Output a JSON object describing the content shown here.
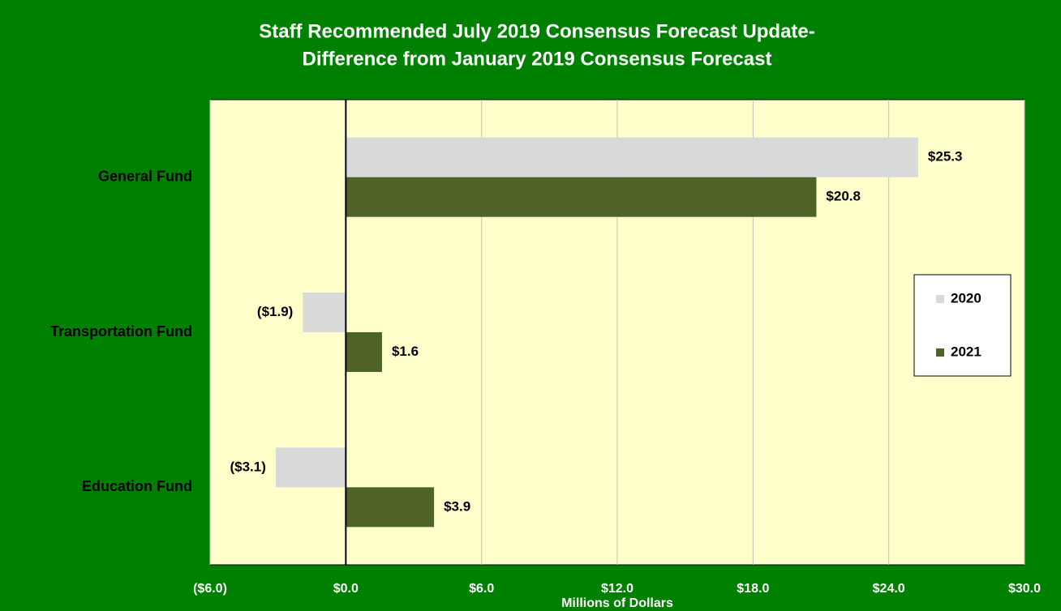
{
  "chart_data": {
    "type": "hbar",
    "title": [
      "Staff Recommended July 2019 Consensus Forecast Update-",
      "Difference from January 2019 Consensus Forecast"
    ],
    "x_label": "Millions of Dollars",
    "categories": [
      "General Fund",
      "Transportation Fund",
      "Education Fund"
    ],
    "series": [
      {
        "name": "2020",
        "color": "#d9d9d9",
        "values": [
          25.3,
          -1.9,
          -3.1
        ],
        "value_labels": [
          "$25.3",
          "($1.9)",
          "($3.1)"
        ]
      },
      {
        "name": "2021",
        "color": "#4f6228",
        "values": [
          20.8,
          1.6,
          3.9
        ],
        "value_labels": [
          "$20.8",
          "$1.6",
          "$3.9"
        ]
      }
    ],
    "xlim": [
      -6,
      30
    ],
    "xticks": [
      {
        "value": -6,
        "label": "($6.0)"
      },
      {
        "value": 0,
        "label": "$0.0"
      },
      {
        "value": 6,
        "label": "$6.0"
      },
      {
        "value": 12,
        "label": "$12.0"
      },
      {
        "value": 18,
        "label": "$18.0"
      },
      {
        "value": 24,
        "label": "$24.0"
      },
      {
        "value": 30,
        "label": "$30.0"
      }
    ],
    "grid": true,
    "legend": "right"
  }
}
